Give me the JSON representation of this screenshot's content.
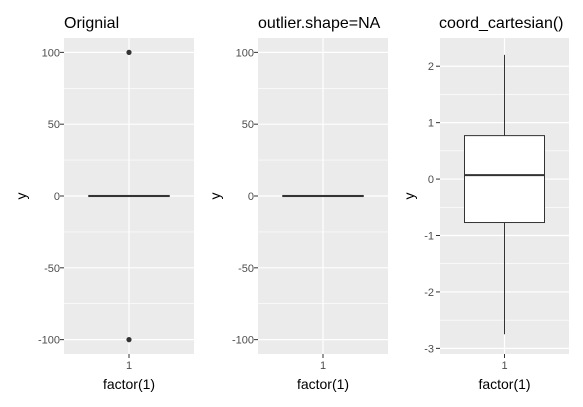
{
  "chart_data": [
    {
      "type": "boxplot",
      "title": "Orignial",
      "xlabel": "factor(1)",
      "ylabel": "y",
      "categories": [
        "1"
      ],
      "ylim": [
        -110,
        110
      ],
      "yticks": [
        100,
        50,
        0,
        -50,
        -100
      ],
      "ytick_labels": [
        "100",
        "50",
        "0",
        "-50",
        "-100"
      ],
      "box": {
        "min": -0.3,
        "q1": -0.2,
        "median": 0,
        "q3": 0.2,
        "max": 0.3
      },
      "outliers": [
        100,
        -100
      ],
      "grid": true
    },
    {
      "type": "boxplot",
      "title": "outlier.shape=NA",
      "xlabel": "factor(1)",
      "ylabel": "y",
      "categories": [
        "1"
      ],
      "ylim": [
        -110,
        110
      ],
      "yticks": [
        100,
        50,
        0,
        -50,
        -100
      ],
      "ytick_labels": [
        "100",
        "50",
        "0",
        "-50",
        "-100"
      ],
      "box": {
        "min": -0.3,
        "q1": -0.2,
        "median": 0,
        "q3": 0.2,
        "max": 0.3
      },
      "outliers": [],
      "grid": true
    },
    {
      "type": "boxplot",
      "title": "coord_cartesian()",
      "xlabel": "factor(1)",
      "ylabel": "y",
      "categories": [
        "1"
      ],
      "ylim": [
        -3.1,
        2.5
      ],
      "yticks": [
        2,
        1,
        0,
        -1,
        -2,
        -3
      ],
      "ytick_labels": [
        "2",
        "1",
        "0",
        "-1",
        "-2",
        "-3"
      ],
      "box": {
        "min": -2.75,
        "q1": -0.77,
        "median": 0.07,
        "q3": 0.77,
        "max": 2.2
      },
      "outliers": [],
      "grid": true
    }
  ],
  "colors": {
    "panel_bg": "#ebebeb",
    "grid": "#ffffff",
    "box_line": "#333333",
    "box_fill": "#ffffff",
    "tick": "#333333"
  }
}
